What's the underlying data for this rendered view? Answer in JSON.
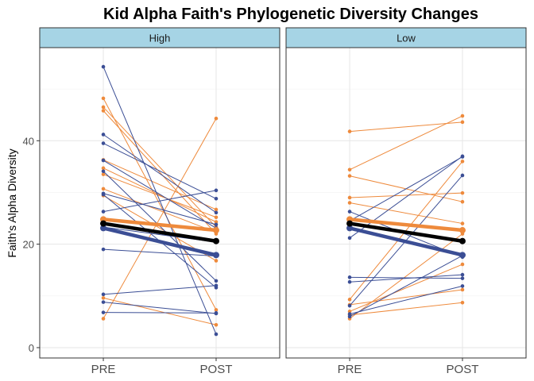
{
  "chart_data": {
    "type": "line",
    "title": "Kid Alpha Faith's Phylogenetic Diversity Changes",
    "ylabel": "Faith's Alpha Diversity",
    "xlabel": "",
    "categories": [
      "PRE",
      "POST"
    ],
    "ylim": [
      -2,
      58
    ],
    "yticks": [
      0,
      20,
      40
    ],
    "grid": true,
    "colors": {
      "orange": "#ee8a3c",
      "blue": "#3b4e95",
      "mean": "#000000",
      "strip_fill": "#a6d4e5"
    },
    "facets": [
      {
        "label": "High",
        "orange_lines": [
          [
            48.2,
            7.3
          ],
          [
            46.5,
            23.3
          ],
          [
            45.8,
            22.0
          ],
          [
            36.3,
            26.7
          ],
          [
            34.7,
            24.3
          ],
          [
            33.5,
            25.2
          ],
          [
            30.7,
            22.3
          ],
          [
            29.4,
            16.8
          ],
          [
            9.6,
            4.4
          ],
          [
            5.6,
            44.3
          ]
        ],
        "blue_lines": [
          [
            54.3,
            2.6
          ],
          [
            41.2,
            26.1
          ],
          [
            39.5,
            28.8
          ],
          [
            36.2,
            23.1
          ],
          [
            34.1,
            12.9
          ],
          [
            29.8,
            23.8
          ],
          [
            26.3,
            30.4
          ],
          [
            19.0,
            17.7
          ],
          [
            10.3,
            12.0
          ],
          [
            8.8,
            6.6
          ],
          [
            6.8,
            6.7
          ],
          [
            29.6,
            11.6
          ],
          [
            23.3,
            20.4
          ]
        ],
        "mean_orange": [
          24.8,
          22.7
        ],
        "mean_blue": [
          23.1,
          17.9
        ],
        "mean_overall": [
          24.0,
          20.6
        ]
      },
      {
        "label": "Low",
        "orange_lines": [
          [
            41.8,
            43.6
          ],
          [
            34.4,
            44.8
          ],
          [
            33.2,
            28.2
          ],
          [
            29.0,
            29.9
          ],
          [
            28.0,
            24.0
          ],
          [
            9.3,
            36.0
          ],
          [
            8.3,
            11.2
          ],
          [
            7.0,
            16.1
          ],
          [
            6.3,
            8.7
          ],
          [
            5.6,
            22.0
          ]
        ],
        "blue_lines": [
          [
            26.3,
            17.5
          ],
          [
            24.5,
            36.9
          ],
          [
            21.2,
            37.0
          ],
          [
            13.6,
            13.4
          ],
          [
            12.7,
            14.1
          ],
          [
            8.1,
            33.3
          ],
          [
            6.5,
            11.9
          ],
          [
            6.0,
            17.8
          ]
        ],
        "mean_orange": [
          24.8,
          22.7
        ],
        "mean_blue": [
          23.1,
          17.9
        ],
        "mean_overall": [
          24.0,
          20.6
        ]
      }
    ]
  }
}
